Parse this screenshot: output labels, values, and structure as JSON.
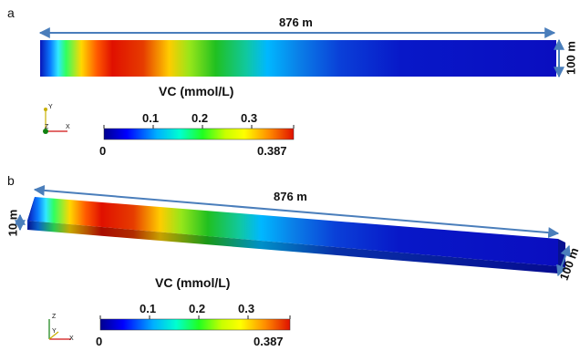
{
  "panels": [
    {
      "letter": "a",
      "length_label": "876 m",
      "width_label": "100 m",
      "colorbar": {
        "title": "VC (mmol/L)",
        "min_label": "0",
        "max_label": "0.387",
        "ticks": [
          "0.1",
          "0.2",
          "0.3"
        ]
      },
      "triad": {
        "axes": [
          "Y",
          "Z",
          "X"
        ]
      }
    },
    {
      "letter": "b",
      "length_label": "876 m",
      "width_label": "100 m",
      "height_label": "10 m",
      "colorbar": {
        "title": "VC (mmol/L)",
        "min_label": "0",
        "max_label": "0.387",
        "ticks": [
          "0.1",
          "0.2",
          "0.3"
        ]
      },
      "triad": {
        "axes": [
          "Z",
          "Y",
          "X"
        ]
      }
    }
  ],
  "colormap": [
    "#00008f",
    "#0000ff",
    "#00b0ff",
    "#00ffd0",
    "#20ff20",
    "#c8ff00",
    "#ffff00",
    "#ff8c00",
    "#e01000"
  ],
  "colors": {
    "dimension_arrow": "#4a7ebb",
    "background_field": "#0a0fc4",
    "triad_x": "#d01010",
    "triad_y": "#c8b000",
    "triad_z": "#108010"
  }
}
